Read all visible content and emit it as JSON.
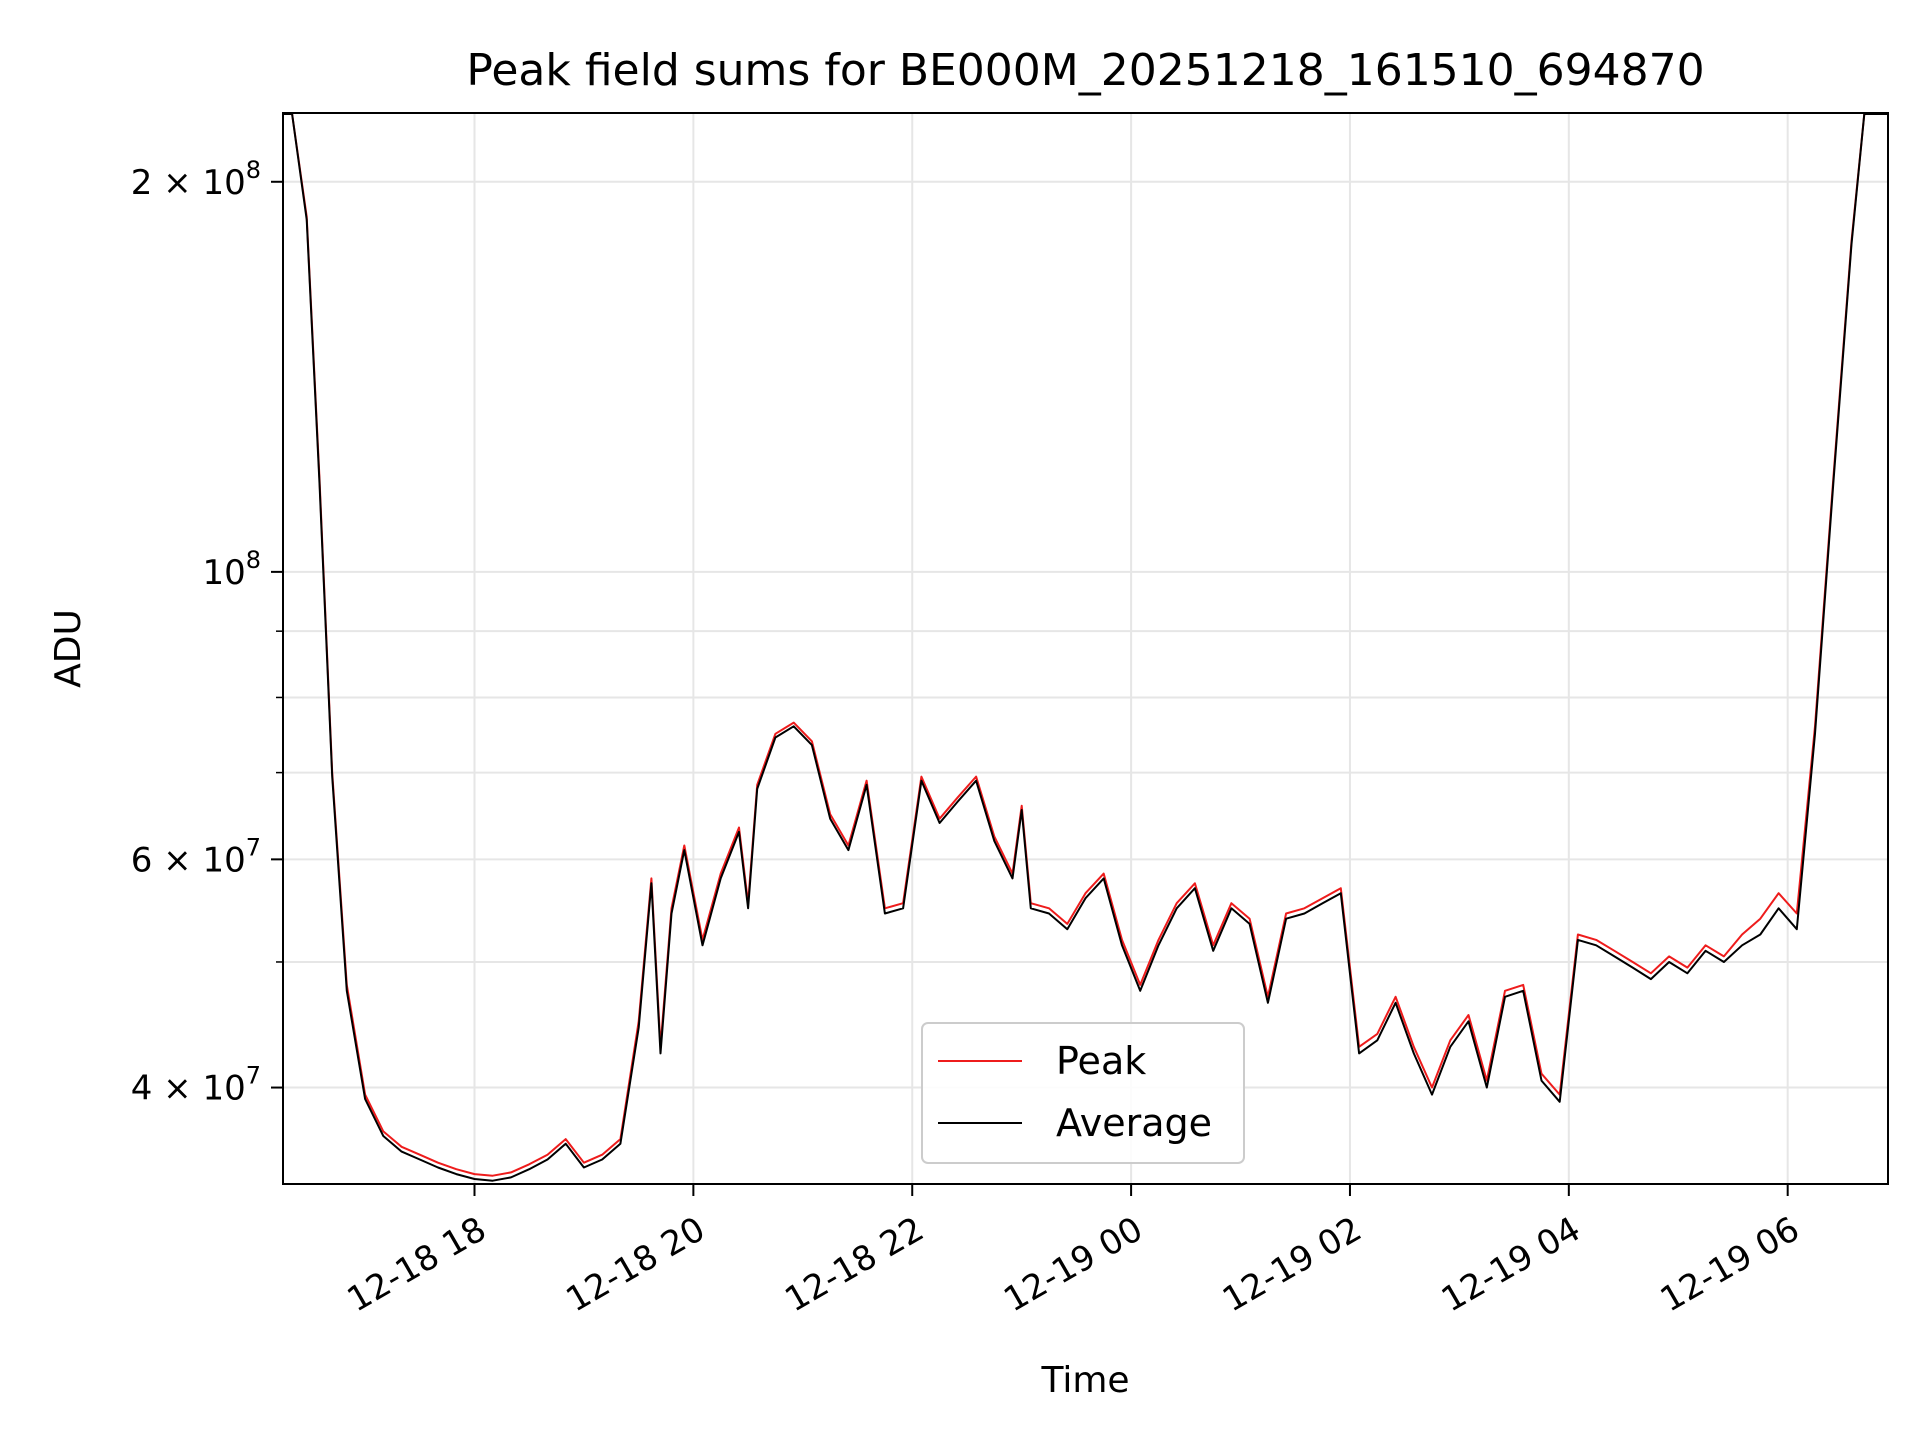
{
  "chart_data": {
    "type": "line",
    "title": "Peak field sums for BE000M_20251218_161510_694870",
    "xlabel": "Time",
    "ylabel": "ADU",
    "y_scale": "log",
    "grid": true,
    "legend_position": "lower-center",
    "xlim": [
      "2025-12-18 16:15",
      "2025-12-19 06:55"
    ],
    "ylim": [
      33700000,
      226000000
    ],
    "x_ticks": [
      {
        "value": "2025-12-18 18:00",
        "label": "12-18 18"
      },
      {
        "value": "2025-12-18 20:00",
        "label": "12-18 20"
      },
      {
        "value": "2025-12-18 22:00",
        "label": "12-18 22"
      },
      {
        "value": "2025-12-19 00:00",
        "label": "12-19 00"
      },
      {
        "value": "2025-12-19 02:00",
        "label": "12-19 02"
      },
      {
        "value": "2025-12-19 04:00",
        "label": "12-19 04"
      },
      {
        "value": "2025-12-19 06:00",
        "label": "12-19 06"
      }
    ],
    "y_ticks": [
      {
        "value": 200000000,
        "base": "2 × 10",
        "exp": "8"
      },
      {
        "value": 100000000,
        "base": "10",
        "exp": "8"
      },
      {
        "value": 60000000,
        "base": "6 × 10",
        "exp": "7"
      },
      {
        "value": 40000000,
        "base": "4 × 10",
        "exp": "7"
      }
    ],
    "y_minor_ticks": [
      50000000,
      70000000,
      80000000,
      90000000
    ],
    "x": [
      "2025-12-18 16:15",
      "2025-12-18 16:20",
      "2025-12-18 16:28",
      "2025-12-18 16:35",
      "2025-12-18 16:42",
      "2025-12-18 16:50",
      "2025-12-18 17:00",
      "2025-12-18 17:10",
      "2025-12-18 17:20",
      "2025-12-18 17:30",
      "2025-12-18 17:40",
      "2025-12-18 17:50",
      "2025-12-18 18:00",
      "2025-12-18 18:10",
      "2025-12-18 18:20",
      "2025-12-18 18:30",
      "2025-12-18 18:40",
      "2025-12-18 18:50",
      "2025-12-18 19:00",
      "2025-12-18 19:10",
      "2025-12-18 19:20",
      "2025-12-18 19:30",
      "2025-12-18 19:37",
      "2025-12-18 19:42",
      "2025-12-18 19:48",
      "2025-12-18 19:55",
      "2025-12-18 20:05",
      "2025-12-18 20:15",
      "2025-12-18 20:25",
      "2025-12-18 20:30",
      "2025-12-18 20:35",
      "2025-12-18 20:45",
      "2025-12-18 20:55",
      "2025-12-18 21:05",
      "2025-12-18 21:15",
      "2025-12-18 21:25",
      "2025-12-18 21:35",
      "2025-12-18 21:45",
      "2025-12-18 21:55",
      "2025-12-18 22:05",
      "2025-12-18 22:15",
      "2025-12-18 22:25",
      "2025-12-18 22:35",
      "2025-12-18 22:45",
      "2025-12-18 22:55",
      "2025-12-18 23:00",
      "2025-12-18 23:05",
      "2025-12-18 23:15",
      "2025-12-18 23:25",
      "2025-12-18 23:35",
      "2025-12-18 23:45",
      "2025-12-18 23:55",
      "2025-12-19 00:05",
      "2025-12-19 00:15",
      "2025-12-19 00:25",
      "2025-12-19 00:35",
      "2025-12-19 00:45",
      "2025-12-19 00:55",
      "2025-12-19 01:05",
      "2025-12-19 01:15",
      "2025-12-19 01:25",
      "2025-12-19 01:35",
      "2025-12-19 01:45",
      "2025-12-19 01:55",
      "2025-12-19 02:05",
      "2025-12-19 02:15",
      "2025-12-19 02:25",
      "2025-12-19 02:35",
      "2025-12-19 02:45",
      "2025-12-19 02:55",
      "2025-12-19 03:05",
      "2025-12-19 03:15",
      "2025-12-19 03:25",
      "2025-12-19 03:35",
      "2025-12-19 03:45",
      "2025-12-19 03:55",
      "2025-12-19 04:05",
      "2025-12-19 04:15",
      "2025-12-19 04:25",
      "2025-12-19 04:35",
      "2025-12-19 04:45",
      "2025-12-19 04:55",
      "2025-12-19 05:05",
      "2025-12-19 05:15",
      "2025-12-19 05:25",
      "2025-12-19 05:35",
      "2025-12-19 05:45",
      "2025-12-19 05:55",
      "2025-12-19 06:05",
      "2025-12-19 06:15",
      "2025-12-19 06:25",
      "2025-12-19 06:35",
      "2025-12-19 06:42",
      "2025-12-19 06:50",
      "2025-12-19 06:55"
    ],
    "series": [
      {
        "name": "Peak",
        "color": "#ee1c1c",
        "values": [
          226000000,
          226000000,
          188000000,
          118000000,
          70000000,
          48000000,
          39500000,
          37000000,
          36000000,
          35500000,
          35000000,
          34600000,
          34300000,
          34200000,
          34400000,
          34900000,
          35500000,
          36500000,
          35000000,
          35500000,
          36500000,
          45000000,
          58000000,
          43000000,
          55000000,
          61500000,
          52000000,
          58500000,
          63500000,
          55500000,
          68500000,
          75000000,
          76500000,
          74000000,
          65000000,
          61500000,
          69000000,
          55000000,
          55500000,
          69500000,
          64500000,
          67000000,
          69500000,
          62500000,
          58500000,
          66000000,
          55500000,
          55000000,
          53500000,
          56500000,
          58500000,
          52000000,
          48000000,
          52000000,
          55500000,
          57500000,
          51500000,
          55500000,
          54000000,
          47000000,
          54500000,
          55000000,
          56000000,
          57000000,
          43000000,
          44000000,
          47000000,
          43000000,
          40000000,
          43500000,
          45500000,
          40500000,
          47500000,
          48000000,
          41000000,
          39500000,
          52500000,
          52000000,
          51000000,
          50000000,
          49000000,
          50500000,
          49500000,
          51500000,
          50500000,
          52500000,
          54000000,
          56500000,
          54500000,
          76000000,
          118000000,
          180000000,
          226000000,
          226000000,
          226000000
        ]
      },
      {
        "name": "Average",
        "color": "#000000",
        "values": [
          226000000,
          226000000,
          187000000,
          117000000,
          69500000,
          47500000,
          39200000,
          36700000,
          35700000,
          35200000,
          34700000,
          34300000,
          34000000,
          33900000,
          34100000,
          34600000,
          35200000,
          36200000,
          34700000,
          35200000,
          36200000,
          44500000,
          57500000,
          42500000,
          54500000,
          61000000,
          51500000,
          58000000,
          63000000,
          55000000,
          68000000,
          74500000,
          76000000,
          73500000,
          64500000,
          61000000,
          68500000,
          54500000,
          55000000,
          69000000,
          64000000,
          66500000,
          69000000,
          62000000,
          58000000,
          65500000,
          55000000,
          54500000,
          53000000,
          56000000,
          58000000,
          51500000,
          47500000,
          51500000,
          55000000,
          57000000,
          51000000,
          55000000,
          53500000,
          46500000,
          54000000,
          54500000,
          55500000,
          56500000,
          42500000,
          43500000,
          46500000,
          42500000,
          39500000,
          43000000,
          45000000,
          40000000,
          47000000,
          47500000,
          40500000,
          39000000,
          52000000,
          51500000,
          50500000,
          49500000,
          48500000,
          50000000,
          49000000,
          51000000,
          50000000,
          51500000,
          52500000,
          55000000,
          53000000,
          75000000,
          117000000,
          179000000,
          226000000,
          226000000,
          226000000
        ]
      }
    ],
    "legend": [
      {
        "label": "Peak",
        "color": "#ee1c1c"
      },
      {
        "label": "Average",
        "color": "#000000"
      }
    ]
  }
}
